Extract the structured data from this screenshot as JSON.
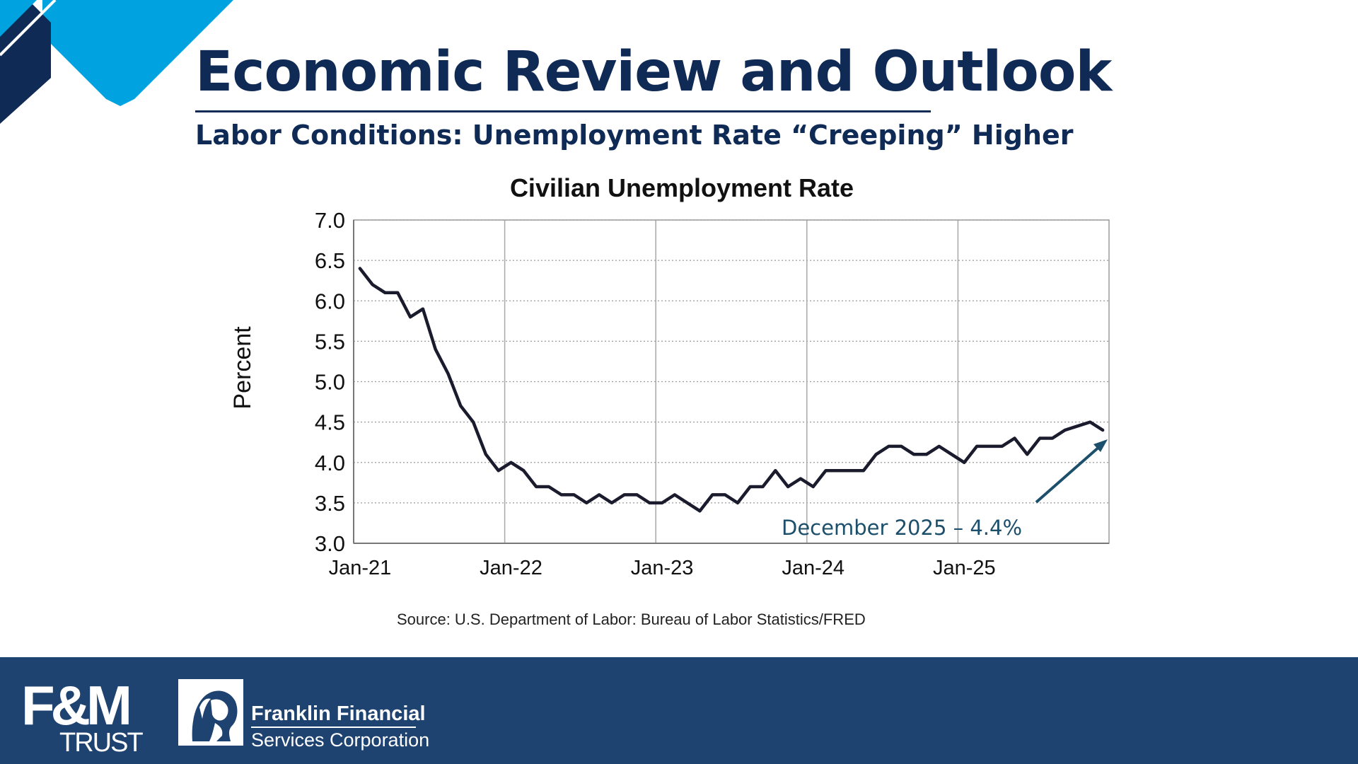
{
  "slide": {
    "title": "Economic Review and Outlook",
    "subtitle": "Labor Conditions: Unemployment Rate “Creeping” Higher"
  },
  "colors": {
    "navy": "#0f2a55",
    "accent_blue": "#00a3e0",
    "footer": "#1f4370",
    "line": "#1b1b2e",
    "annotation": "#1b4f6b"
  },
  "chart_data": {
    "type": "line",
    "title": "Civilian Unemployment Rate",
    "ylabel": "Percent",
    "xlabel": "",
    "ylim": [
      3.0,
      7.0
    ],
    "yticks": [
      "7.0",
      "6.5",
      "6.0",
      "5.5",
      "5.0",
      "4.5",
      "4.0",
      "3.5",
      "3.0"
    ],
    "xticks": [
      "Jan-21",
      "Jan-22",
      "Jan-23",
      "Jan-24",
      "Jan-25"
    ],
    "x_start": "Jan-21",
    "x": [
      "Jan-21",
      "Feb-21",
      "Mar-21",
      "Apr-21",
      "May-21",
      "Jun-21",
      "Jul-21",
      "Aug-21",
      "Sep-21",
      "Oct-21",
      "Nov-21",
      "Dec-21",
      "Jan-22",
      "Feb-22",
      "Mar-22",
      "Apr-22",
      "May-22",
      "Jun-22",
      "Jul-22",
      "Aug-22",
      "Sep-22",
      "Oct-22",
      "Nov-22",
      "Dec-22",
      "Jan-23",
      "Feb-23",
      "Mar-23",
      "Apr-23",
      "May-23",
      "Jun-23",
      "Jul-23",
      "Aug-23",
      "Sep-23",
      "Oct-23",
      "Nov-23",
      "Dec-23",
      "Jan-24",
      "Feb-24",
      "Mar-24",
      "Apr-24",
      "May-24",
      "Jun-24",
      "Jul-24",
      "Aug-24",
      "Sep-24",
      "Oct-24",
      "Nov-24",
      "Dec-24",
      "Jan-25",
      "Feb-25",
      "Mar-25",
      "Apr-25",
      "May-25",
      "Jun-25",
      "Jul-25",
      "Aug-25",
      "Sep-25",
      "Oct-25",
      "Nov-25",
      "Dec-25"
    ],
    "values": [
      6.4,
      6.2,
      6.1,
      6.1,
      5.8,
      5.9,
      5.4,
      5.1,
      4.7,
      4.5,
      4.1,
      3.9,
      4.0,
      3.9,
      3.7,
      3.7,
      3.6,
      3.6,
      3.5,
      3.6,
      3.5,
      3.6,
      3.6,
      3.5,
      3.5,
      3.6,
      3.5,
      3.4,
      3.6,
      3.6,
      3.5,
      3.7,
      3.7,
      3.9,
      3.7,
      3.8,
      3.7,
      3.9,
      3.9,
      3.9,
      3.9,
      4.1,
      4.2,
      4.2,
      4.1,
      4.1,
      4.2,
      4.1,
      4.0,
      4.2,
      4.2,
      4.2,
      4.3,
      4.1,
      4.3,
      4.3,
      4.4,
      4.45,
      4.5,
      4.4
    ],
    "grid": true,
    "annotation": "December 2025 – 4.4%",
    "source": "Source: U.S. Department of Labor: Bureau of Labor Statistics/FRED"
  },
  "footer": {
    "fm_logo_text": "F&M",
    "fm_logo_sub": "TRUST",
    "company_line1": "Franklin Financial",
    "company_line2": "Services Corporation",
    "seal_icon": "franklin-portrait-seal"
  }
}
